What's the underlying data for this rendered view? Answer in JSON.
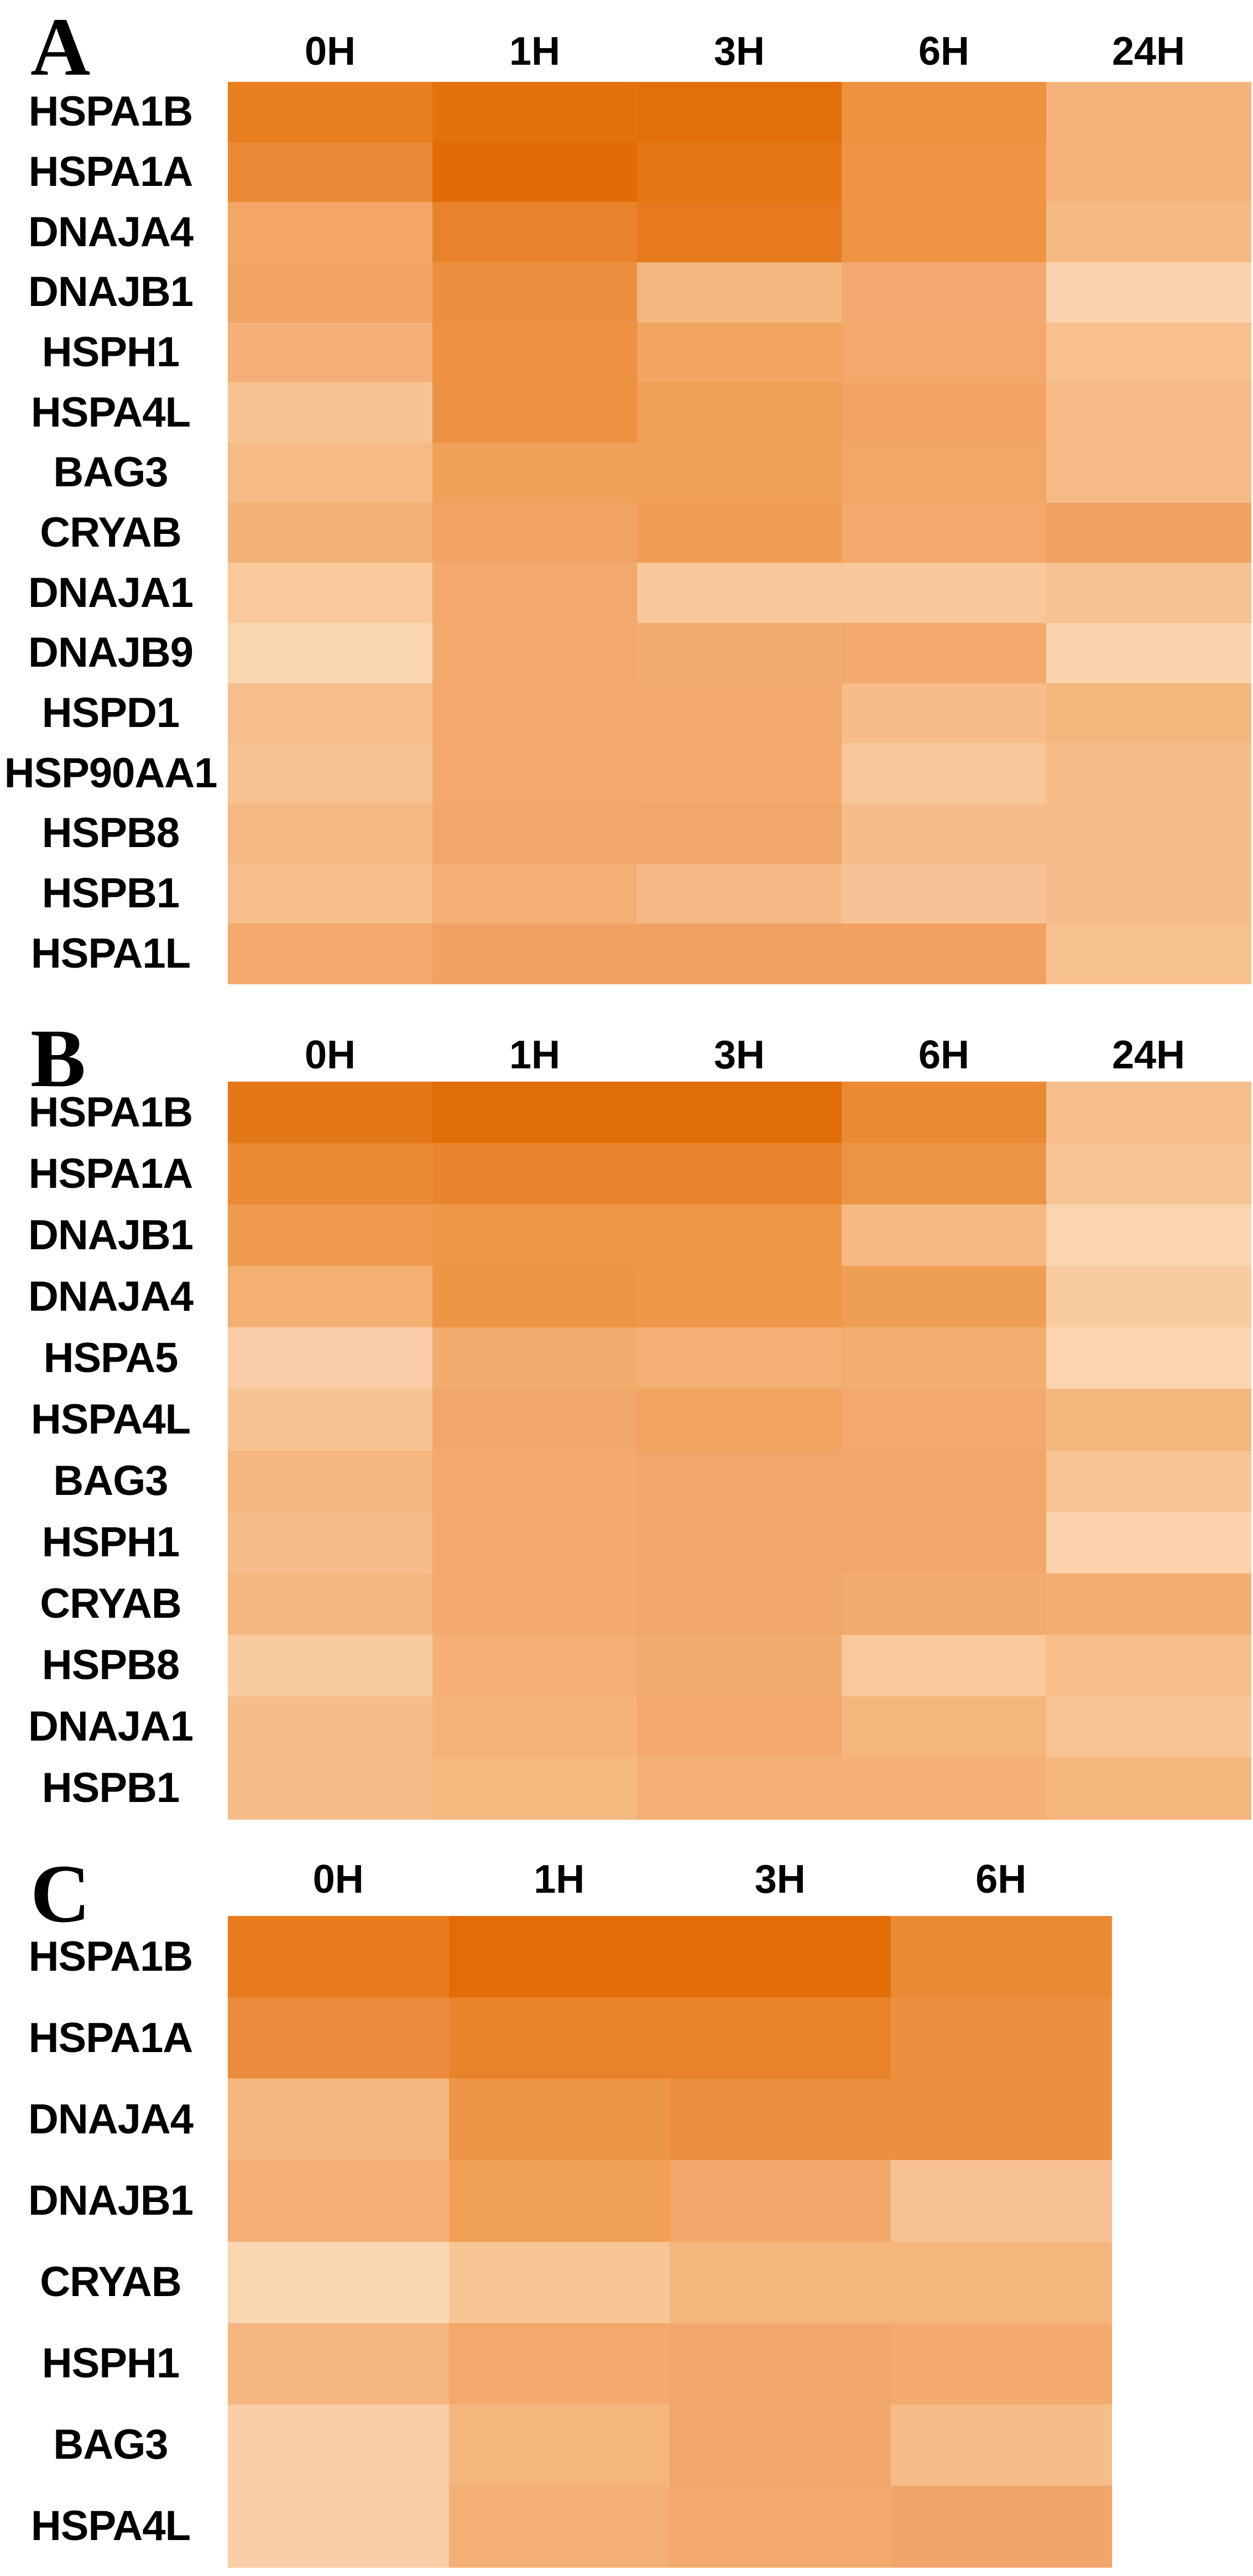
{
  "figure": {
    "background": "#ffffff",
    "text_color": "#000000"
  },
  "chart_data": [
    {
      "type": "heatmap",
      "panel": "A",
      "columns": [
        "0H",
        "1H",
        "3H",
        "6H",
        "24H"
      ],
      "rows": [
        "HSPA1B",
        "HSPA1A",
        "DNAJA4",
        "DNAJB1",
        "HSPH1",
        "HSPA4L",
        "BAG3",
        "CRYAB",
        "DNAJA1",
        "DNAJB9",
        "HSPD1",
        "HSP90AA1",
        "HSPB8",
        "HSPB1",
        "HSPA1L"
      ],
      "legend": "none",
      "color_scale_hint": {
        "low": "#FBD6B2",
        "high": "#E06D06"
      },
      "cells": [
        [
          "#E8801F",
          "#E3720E",
          "#E26F0C",
          "#EE9240",
          "#F5B27B"
        ],
        [
          "#EA8A36",
          "#E16B06",
          "#E57714",
          "#EE9443",
          "#F5B27B"
        ],
        [
          "#F3A667",
          "#E9832B",
          "#E67A1D",
          "#EE9443",
          "#F6B983"
        ],
        [
          "#F2A466",
          "#EC8F40",
          "#F5B77F",
          "#F3A96F",
          "#FBD3AE"
        ],
        [
          "#F4B078",
          "#ED9142",
          "#F2A561",
          "#F2A96B",
          "#F7C08E"
        ],
        [
          "#F8C392",
          "#ED9142",
          "#F09F56",
          "#F1A464",
          "#F6BA86"
        ],
        [
          "#F6BA84",
          "#F0A159",
          "#F0A058",
          "#F1A767",
          "#F6BA86"
        ],
        [
          "#F4B175",
          "#F1A366",
          "#EF9C54",
          "#F2A96B",
          "#F0A263"
        ],
        [
          "#F9C89B",
          "#F2A96B",
          "#F8C79A",
          "#F8C79A",
          "#F7C191"
        ],
        [
          "#FBD6B2",
          "#F2A96B",
          "#F3AC6F",
          "#F3AA6C",
          "#FBD4AE"
        ],
        [
          "#F7BE8D",
          "#F2A96B",
          "#F2A96B",
          "#F6BC8A",
          "#F5B67E"
        ],
        [
          "#F7C191",
          "#F2A96B",
          "#F3AA6C",
          "#F8C79A",
          "#F6BC8A"
        ],
        [
          "#F6B983",
          "#F2A76A",
          "#F2A76A",
          "#F6BC8B",
          "#F6BC8B"
        ],
        [
          "#F7BE8D",
          "#F4B074",
          "#F5B885",
          "#F7C396",
          "#F6BD8C"
        ],
        [
          "#F3AA6C",
          "#F1A161",
          "#F1A161",
          "#F1A161",
          "#F7C08F"
        ]
      ]
    },
    {
      "type": "heatmap",
      "panel": "B",
      "columns": [
        "0H",
        "1H",
        "3H",
        "6H",
        "24H"
      ],
      "rows": [
        "HSPA1B",
        "HSPA1A",
        "DNAJB1",
        "DNAJA4",
        "HSPA5",
        "HSPA4L",
        "BAG3",
        "HSPH1",
        "CRYAB",
        "HSPB8",
        "DNAJA1",
        "HSPB1"
      ],
      "legend": "none",
      "color_scale_hint": {
        "low": "#FBD4B0",
        "high": "#E06D06"
      },
      "cells": [
        [
          "#E47817",
          "#E06D06",
          "#E06D06",
          "#EB8A35",
          "#F7BE8C"
        ],
        [
          "#EA8A35",
          "#E8842B",
          "#E8842B",
          "#ED9444",
          "#F8C596"
        ],
        [
          "#EF9A4E",
          "#EE9849",
          "#EE9849",
          "#F5BA84",
          "#FBD4B0"
        ],
        [
          "#F4AF73",
          "#ED9646",
          "#EF9849",
          "#EF9F53",
          "#F9CBA1"
        ],
        [
          "#FACDA8",
          "#F3AB6E",
          "#F4B074",
          "#F3AD6E",
          "#FBD4B0"
        ],
        [
          "#F7C392",
          "#F2A76A",
          "#F1A35F",
          "#F3A96B",
          "#F5B67E"
        ],
        [
          "#F5B77F",
          "#F3AA6C",
          "#F2A76A",
          "#F2A76A",
          "#F8C493"
        ],
        [
          "#F6BC8A",
          "#F3AA6C",
          "#F2A76A",
          "#F2A76A",
          "#FBD2AB"
        ],
        [
          "#F5B77F",
          "#F3AA6C",
          "#F2A76A",
          "#F3AC6E",
          "#F4AE72"
        ],
        [
          "#F9CBA1",
          "#F4B074",
          "#F3AC6E",
          "#F9C89B",
          "#F7BE8C"
        ],
        [
          "#F6BC8A",
          "#F4B377",
          "#F3A96B",
          "#F5B67E",
          "#F8C493"
        ],
        [
          "#F6BC8A",
          "#F5B87F",
          "#F4B074",
          "#F4B074",
          "#F5B67E"
        ]
      ]
    },
    {
      "type": "heatmap",
      "panel": "C",
      "columns": [
        "0H",
        "1H",
        "3H",
        "6H"
      ],
      "rows": [
        "HSPA1B",
        "HSPA1A",
        "DNAJA4",
        "DNAJB1",
        "CRYAB",
        "HSPH1",
        "BAG3",
        "HSPA4L"
      ],
      "legend": "none",
      "color_scale_hint": {
        "low": "#FBD6B2",
        "high": "#E26D08"
      },
      "cells": [
        [
          "#E87C1D",
          "#E26D08",
          "#E26D08",
          "#EB8A35"
        ],
        [
          "#EB8C3C",
          "#E98329",
          "#E98329",
          "#EC9040"
        ],
        [
          "#F5B77F",
          "#EE9647",
          "#EC9040",
          "#EC9040"
        ],
        [
          "#F4B074",
          "#F0A057",
          "#F2A76A",
          "#F7C193"
        ],
        [
          "#FBD6B2",
          "#F8C595",
          "#F5B67E",
          "#F5B67E"
        ],
        [
          "#F5B77F",
          "#F3A96B",
          "#F2A76A",
          "#F3AA6C"
        ],
        [
          "#F9CDA6",
          "#F5B67E",
          "#F2A76A",
          "#F6BC8A"
        ],
        [
          "#F9CDA6",
          "#F4B074",
          "#F3AA6C",
          "#F2A569"
        ]
      ]
    }
  ]
}
